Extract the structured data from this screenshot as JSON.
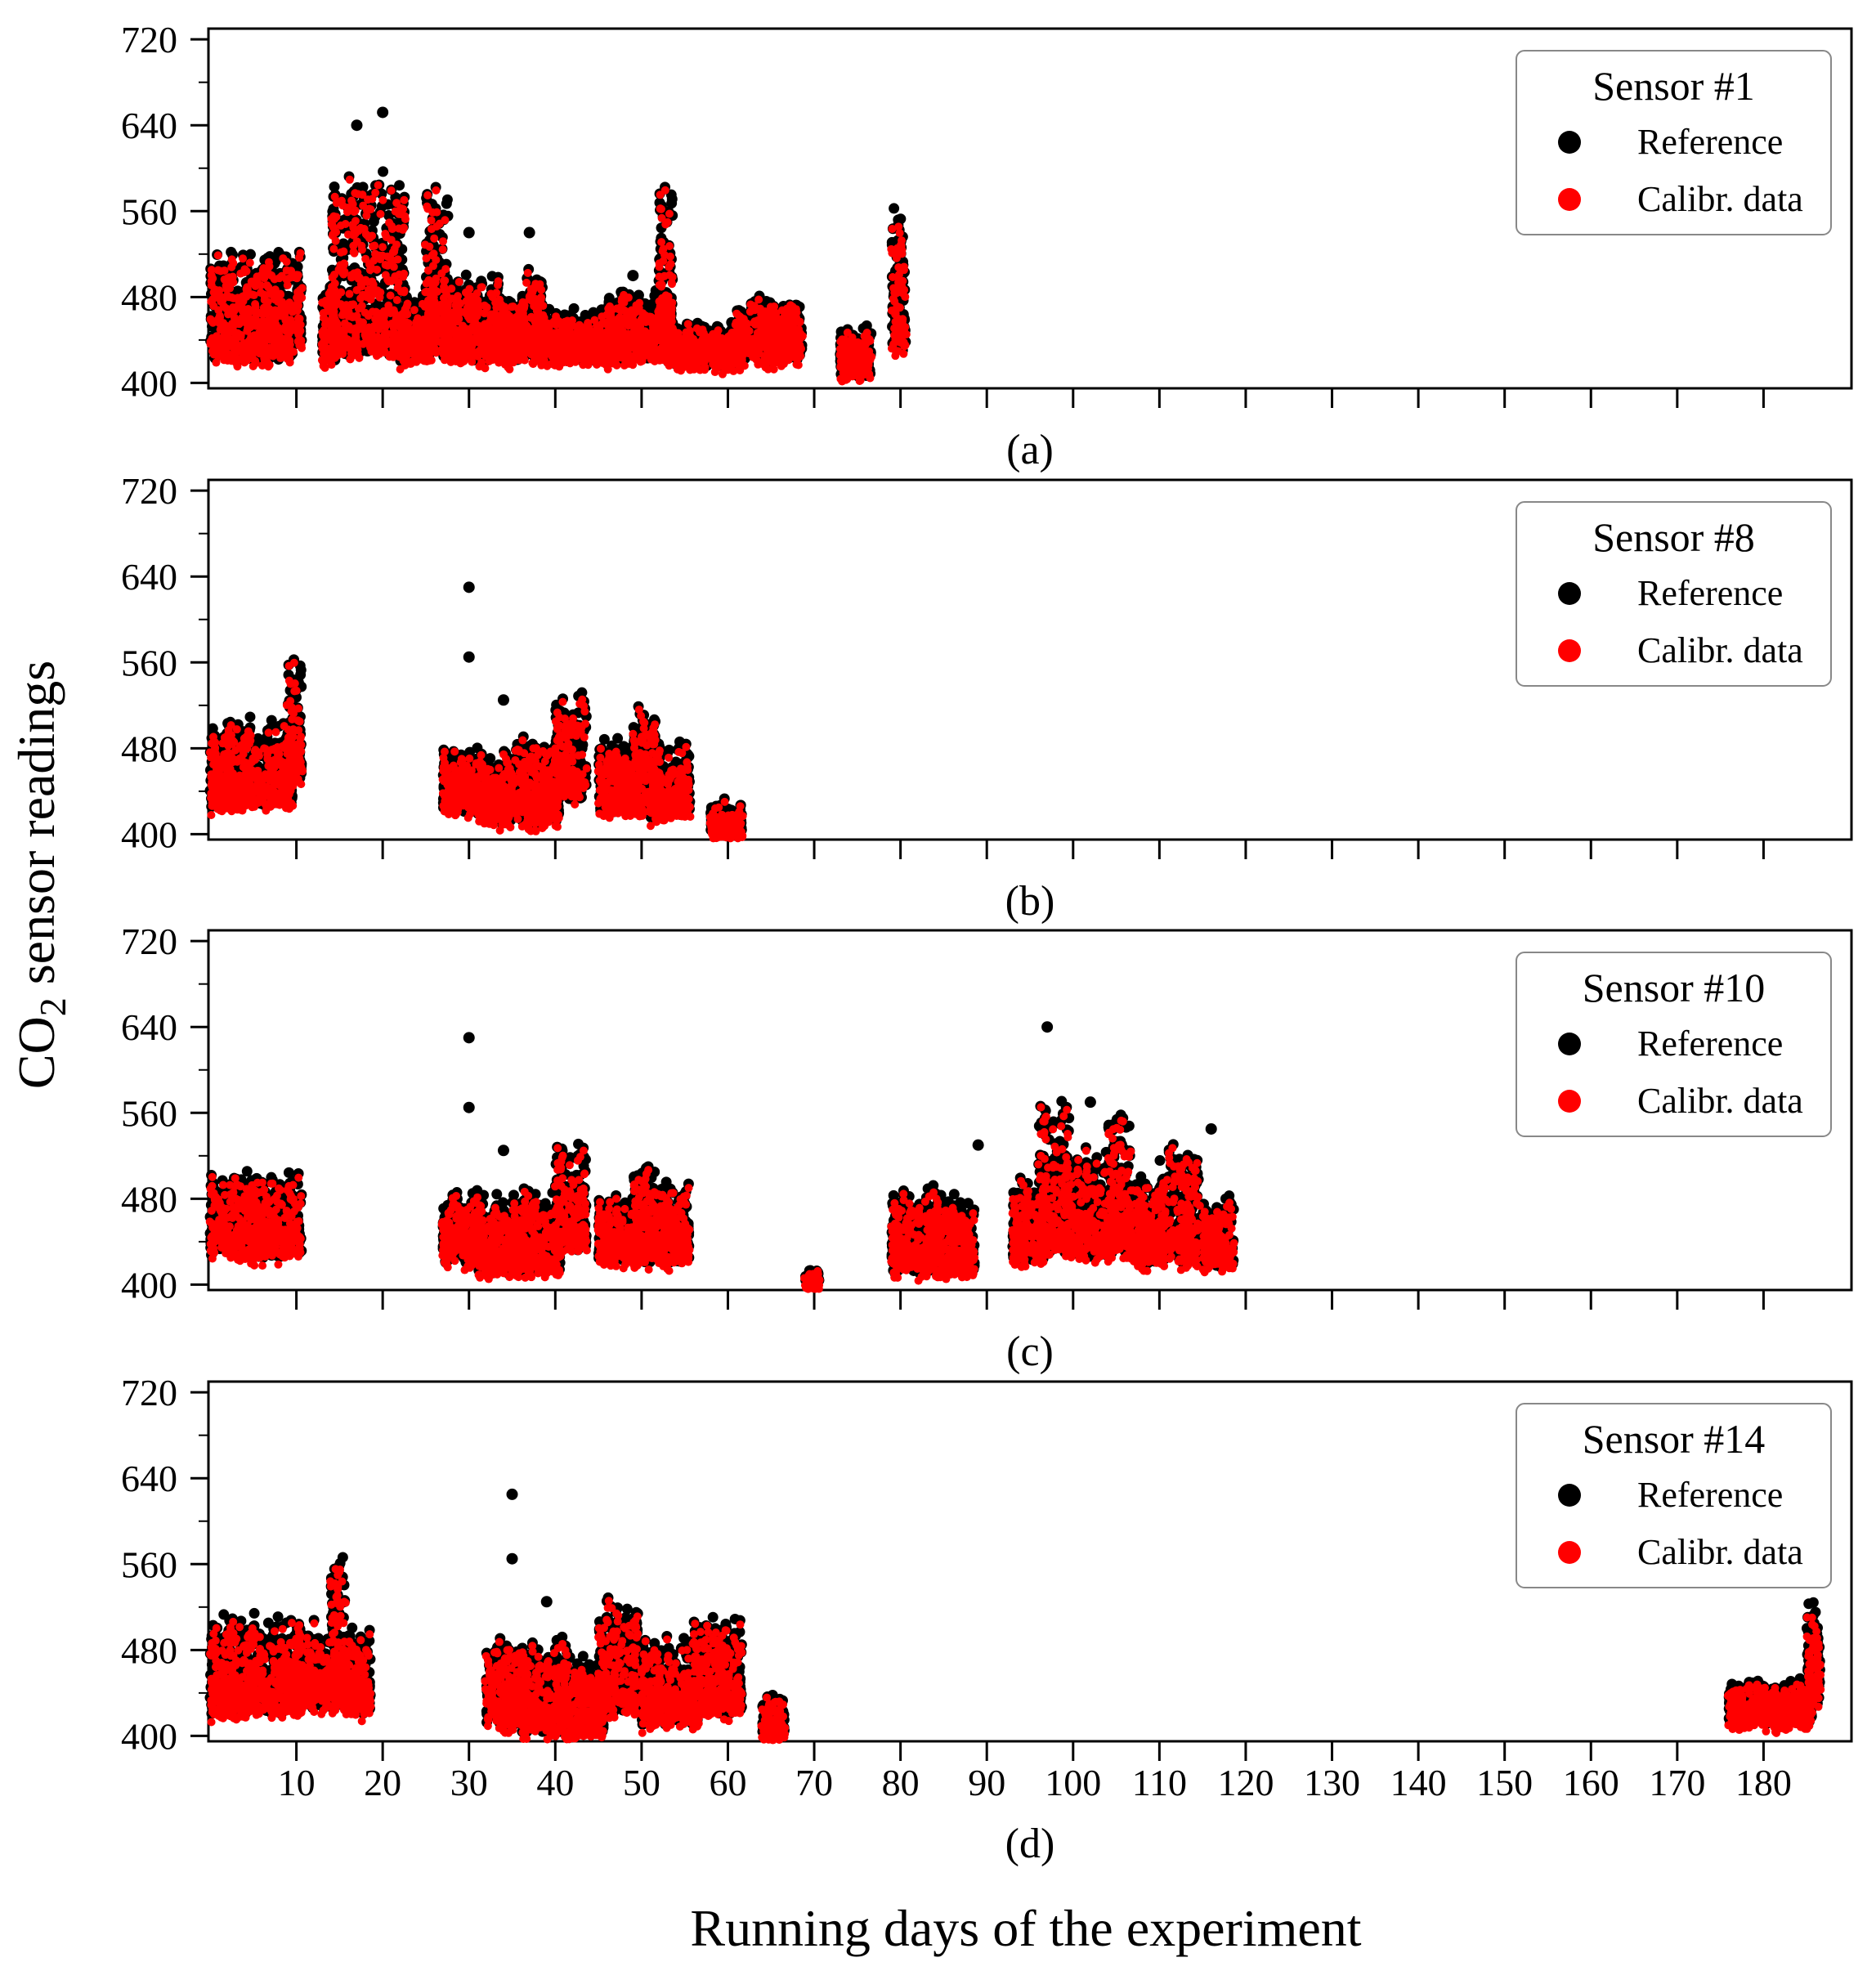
{
  "chart_data": {
    "type": "scatter",
    "xlabel": "Running days of the experiment",
    "ylabel_main": "CO",
    "ylabel_sub": "2",
    "ylabel_rest": " sensor readings",
    "xlim": [
      0,
      190
    ],
    "ylim": [
      395,
      730
    ],
    "yticks": [
      400,
      480,
      560,
      640,
      720
    ],
    "xticks": [
      10,
      20,
      30,
      40,
      50,
      60,
      70,
      80,
      90,
      100,
      110,
      120,
      130,
      140,
      150,
      160,
      170,
      180
    ],
    "series_names": [
      "Reference",
      "Calibr. data"
    ],
    "series_colors": [
      "#000000",
      "#ff0000"
    ],
    "panels": [
      {
        "label": "(a)",
        "legend_title": "Sensor #1",
        "segments": [
          [
            0,
            9,
            440,
            80
          ],
          [
            10,
            10,
            455,
            70
          ],
          [
            13,
            14,
            440,
            50
          ],
          [
            14,
            22,
            445,
            150
          ],
          [
            22,
            25,
            440,
            40
          ],
          [
            25,
            27,
            450,
            130
          ],
          [
            27,
            33,
            440,
            60
          ],
          [
            33,
            36,
            440,
            40
          ],
          [
            36,
            38,
            445,
            60
          ],
          [
            38,
            46,
            440,
            25
          ],
          [
            46,
            53,
            440,
            45
          ],
          [
            52,
            53,
            460,
            120
          ],
          [
            53,
            61,
            435,
            20
          ],
          [
            61,
            68,
            440,
            40
          ],
          [
            73,
            76,
            425,
            25
          ],
          [
            79,
            80,
            450,
            110
          ]
        ],
        "outliers": [
          [
            17,
            640
          ],
          [
            20,
            652
          ],
          [
            37,
            540
          ],
          [
            49,
            500
          ],
          [
            30,
            540
          ]
        ]
      },
      {
        "label": "(b)",
        "legend_title": "Sensor #8",
        "segments": [
          [
            0,
            9,
            445,
            60
          ],
          [
            9,
            10,
            470,
            90
          ],
          [
            27,
            31,
            440,
            40
          ],
          [
            31,
            34,
            430,
            40
          ],
          [
            34,
            40,
            430,
            60
          ],
          [
            40,
            43,
            450,
            80
          ],
          [
            45,
            49,
            440,
            45
          ],
          [
            49,
            51,
            440,
            80
          ],
          [
            51,
            55,
            435,
            50
          ],
          [
            58,
            61,
            410,
            20
          ]
        ],
        "outliers": [
          [
            30,
            630
          ],
          [
            30,
            565
          ],
          [
            34,
            525
          ]
        ]
      },
      {
        "label": "(c)",
        "legend_title": "Sensor #10",
        "segments": [
          [
            0,
            10,
            445,
            60
          ],
          [
            27,
            31,
            440,
            45
          ],
          [
            31,
            35,
            430,
            50
          ],
          [
            35,
            40,
            430,
            60
          ],
          [
            40,
            43,
            450,
            80
          ],
          [
            45,
            49,
            440,
            40
          ],
          [
            49,
            51,
            440,
            80
          ],
          [
            51,
            55,
            440,
            55
          ],
          [
            69,
            70,
            402,
            10
          ],
          [
            79,
            84,
            430,
            60
          ],
          [
            84,
            88,
            430,
            50
          ],
          [
            93,
            96,
            440,
            60
          ],
          [
            96,
            99,
            450,
            120
          ],
          [
            99,
            104,
            445,
            80
          ],
          [
            104,
            106,
            450,
            120
          ],
          [
            106,
            110,
            440,
            60
          ],
          [
            110,
            114,
            440,
            90
          ],
          [
            115,
            118,
            435,
            45
          ]
        ],
        "outliers": [
          [
            30,
            630
          ],
          [
            30,
            565
          ],
          [
            34,
            525
          ],
          [
            89,
            530
          ],
          [
            97,
            640
          ],
          [
            116,
            545
          ],
          [
            102,
            570
          ]
        ]
      },
      {
        "label": "(d)",
        "legend_title": "Sensor #14",
        "segments": [
          [
            0,
            10,
            440,
            70
          ],
          [
            10,
            14,
            445,
            60
          ],
          [
            14,
            15,
            450,
            120
          ],
          [
            15,
            18,
            440,
            60
          ],
          [
            32,
            36,
            430,
            60
          ],
          [
            36,
            41,
            420,
            70
          ],
          [
            41,
            45,
            420,
            50
          ],
          [
            45,
            49,
            440,
            90
          ],
          [
            50,
            56,
            430,
            60
          ],
          [
            56,
            61,
            440,
            70
          ],
          [
            64,
            66,
            410,
            30
          ],
          [
            176,
            185,
            430,
            20
          ],
          [
            185,
            186,
            450,
            70
          ]
        ],
        "outliers": [
          [
            35,
            625
          ],
          [
            35,
            565
          ],
          [
            39,
            525
          ]
        ]
      }
    ]
  }
}
